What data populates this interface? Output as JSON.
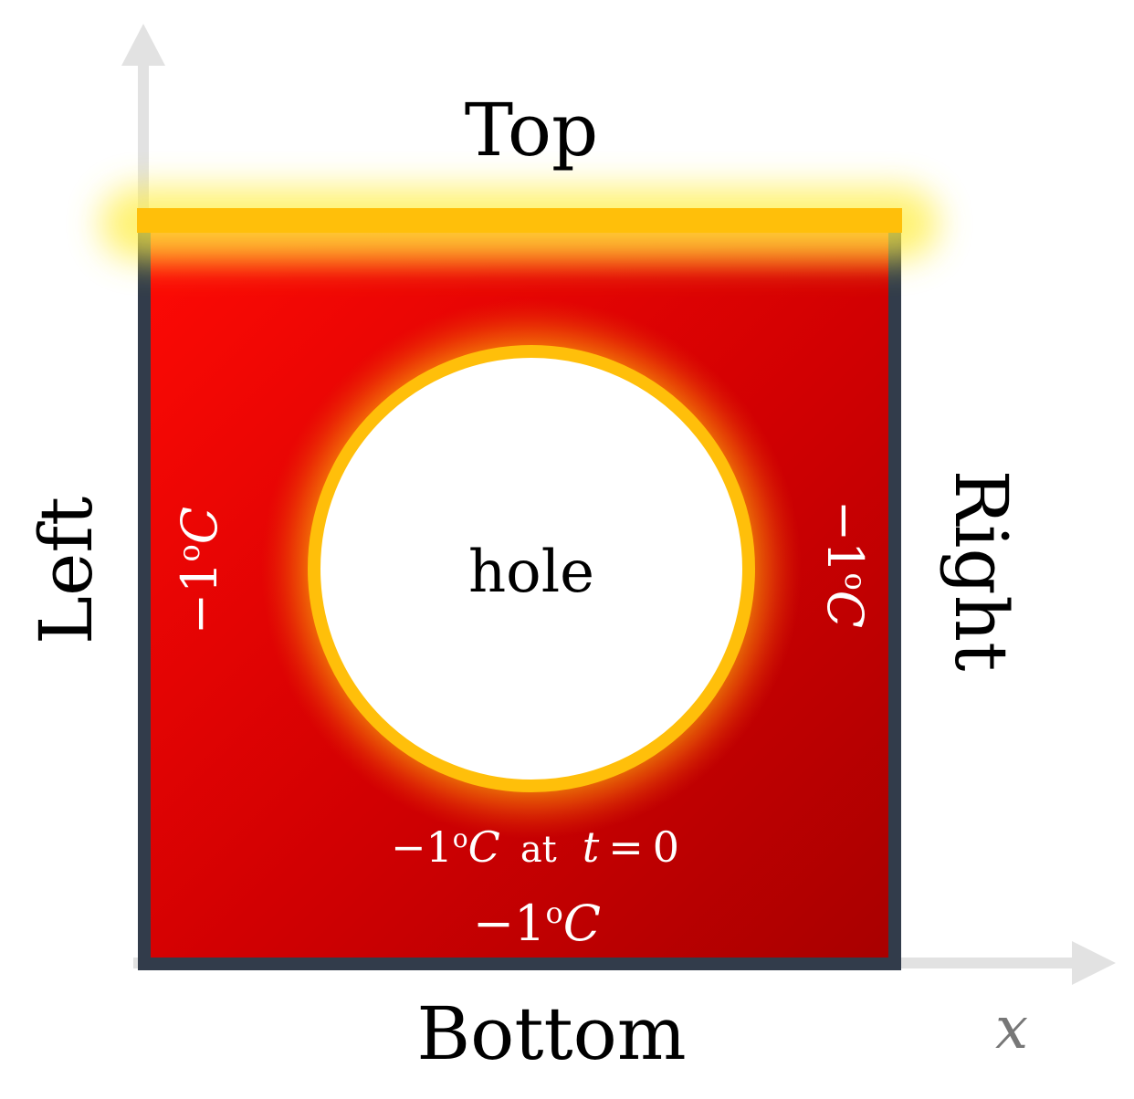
{
  "colors": {
    "plate_hot": "#ff0a05",
    "plate_cold": "#a80000",
    "heated_edge": "#ffbf0a",
    "glow": "#ffee44",
    "plate_border": "#323c4b",
    "axis": "#e2e2e2",
    "axis_label": "#777777"
  },
  "labels": {
    "top": "Top",
    "bottom": "Bottom",
    "left": "Left",
    "right": "Right",
    "hole": "hole"
  },
  "temperatures": {
    "left": {
      "minus": "−1",
      "degree": "o",
      "unit": "C"
    },
    "right": {
      "minus": "−1",
      "degree": "o",
      "unit": "C"
    },
    "bottom": {
      "minus": "−1",
      "degree": "o",
      "unit": "C"
    },
    "initial": {
      "minus": "−1",
      "degree": "o",
      "unit": "C",
      "connector": "at",
      "variable": "t",
      "equals": "=",
      "value": "0"
    }
  },
  "axes": {
    "x_label": "x"
  },
  "icons": {
    "y_axis": "arrow-up-icon",
    "x_axis": "arrow-right-icon"
  }
}
